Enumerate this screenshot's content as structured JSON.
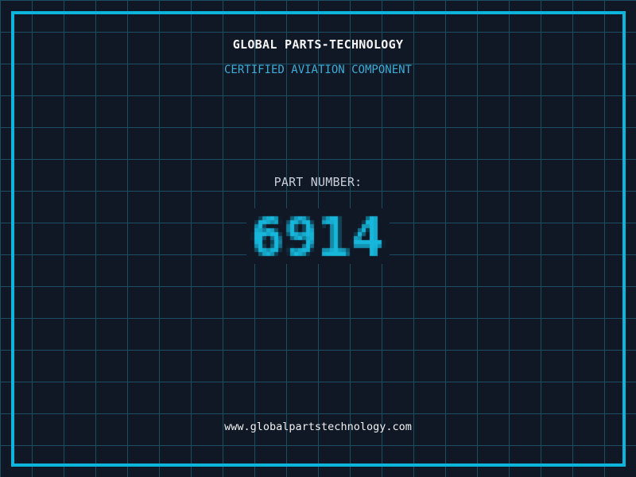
{
  "page": {
    "background_color": "#101826",
    "grid_color": "#1d4d62",
    "frame_color": "#0db4dc"
  },
  "header": {
    "title": "GLOBAL PARTS-TECHNOLOGY",
    "title_color": "#f4f4f4",
    "subtitle": "CERTIFIED AVIATION COMPONENT",
    "subtitle_color": "#3badd6"
  },
  "part": {
    "label": "PART NUMBER:",
    "label_color": "#c9ced8",
    "number": "6914",
    "number_color": "#16b7db"
  },
  "footer": {
    "url": "www.globalpartstechnology.com",
    "url_color": "#f0f0f0"
  }
}
